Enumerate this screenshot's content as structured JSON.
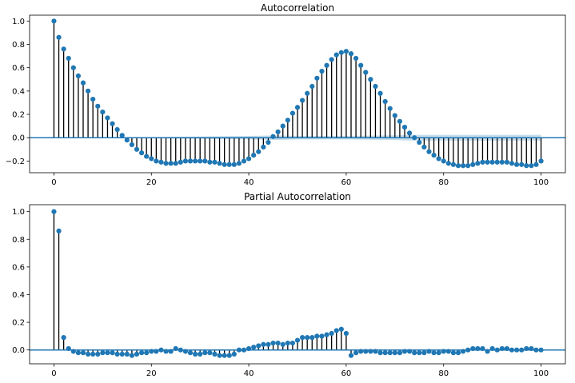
{
  "chart_data": [
    {
      "type": "stem",
      "title": "Autocorrelation",
      "xlabel": "",
      "ylabel": "",
      "xlim": [
        -5,
        105
      ],
      "ylim": [
        -0.3,
        1.05
      ],
      "xticks": [
        0,
        20,
        40,
        60,
        80,
        100
      ],
      "yticks": [
        -0.2,
        0.0,
        0.2,
        0.4,
        0.6,
        0.8,
        1.0
      ],
      "xtick_labels": [
        "0",
        "20",
        "40",
        "60",
        "80",
        "100"
      ],
      "ytick_labels": [
        "−0.2",
        "0.0",
        "0.2",
        "0.4",
        "0.6",
        "0.8",
        "1.0"
      ],
      "grid": false,
      "marker_color": "#1f77b4",
      "stem_color": "#000000",
      "baseline_color": "#1f77b4",
      "confidence_band_color": "#1f77b4",
      "confidence_band": {
        "x": [
          0,
          15,
          20,
          30,
          40,
          46,
          50,
          60,
          70,
          74,
          75,
          80,
          90,
          100
        ],
        "upper": [
          0.0,
          0.0,
          0.005,
          0.01,
          0.015,
          0.02,
          0.015,
          0.015,
          0.02,
          0.025,
          0.025,
          0.025,
          0.025,
          0.025
        ],
        "lower": [
          0.0,
          0.0,
          -0.005,
          -0.01,
          -0.015,
          -0.02,
          -0.015,
          -0.015,
          -0.02,
          -0.025,
          -0.025,
          -0.025,
          -0.025,
          -0.025
        ]
      },
      "x": [
        0,
        1,
        2,
        3,
        4,
        5,
        6,
        7,
        8,
        9,
        10,
        11,
        12,
        13,
        14,
        15,
        16,
        17,
        18,
        19,
        20,
        21,
        22,
        23,
        24,
        25,
        26,
        27,
        28,
        29,
        30,
        31,
        32,
        33,
        34,
        35,
        36,
        37,
        38,
        39,
        40,
        41,
        42,
        43,
        44,
        45,
        46,
        47,
        48,
        49,
        50,
        51,
        52,
        53,
        54,
        55,
        56,
        57,
        58,
        59,
        60,
        61,
        62,
        63,
        64,
        65,
        66,
        67,
        68,
        69,
        70,
        71,
        72,
        73,
        74,
        75,
        76,
        77,
        78,
        79,
        80,
        81,
        82,
        83,
        84,
        85,
        86,
        87,
        88,
        89,
        90,
        91,
        92,
        93,
        94,
        95,
        96,
        97,
        98,
        99,
        100
      ],
      "values": [
        1.0,
        0.86,
        0.76,
        0.68,
        0.6,
        0.53,
        0.47,
        0.4,
        0.33,
        0.27,
        0.22,
        0.17,
        0.12,
        0.07,
        0.02,
        -0.02,
        -0.06,
        -0.1,
        -0.13,
        -0.16,
        -0.18,
        -0.2,
        -0.21,
        -0.22,
        -0.22,
        -0.22,
        -0.21,
        -0.2,
        -0.2,
        -0.2,
        -0.2,
        -0.2,
        -0.21,
        -0.21,
        -0.22,
        -0.23,
        -0.23,
        -0.23,
        -0.22,
        -0.2,
        -0.18,
        -0.15,
        -0.12,
        -0.08,
        -0.04,
        0.01,
        0.05,
        0.1,
        0.15,
        0.21,
        0.26,
        0.32,
        0.38,
        0.44,
        0.51,
        0.57,
        0.62,
        0.67,
        0.71,
        0.73,
        0.74,
        0.72,
        0.68,
        0.62,
        0.56,
        0.5,
        0.44,
        0.38,
        0.31,
        0.25,
        0.19,
        0.14,
        0.09,
        0.04,
        0.0,
        -0.04,
        -0.08,
        -0.12,
        -0.15,
        -0.18,
        -0.2,
        -0.22,
        -0.23,
        -0.24,
        -0.24,
        -0.24,
        -0.23,
        -0.22,
        -0.21,
        -0.21,
        -0.21,
        -0.21,
        -0.21,
        -0.21,
        -0.22,
        -0.23,
        -0.23,
        -0.24,
        -0.24,
        -0.23,
        -0.2
      ]
    },
    {
      "type": "stem",
      "title": "Partial Autocorrelation",
      "xlabel": "",
      "ylabel": "",
      "xlim": [
        -5,
        105
      ],
      "ylim": [
        -0.1,
        1.05
      ],
      "xticks": [
        0,
        20,
        40,
        60,
        80,
        100
      ],
      "yticks": [
        0.0,
        0.2,
        0.4,
        0.6,
        0.8,
        1.0
      ],
      "xtick_labels": [
        "0",
        "20",
        "40",
        "60",
        "80",
        "100"
      ],
      "ytick_labels": [
        "0.0",
        "0.2",
        "0.4",
        "0.6",
        "0.8",
        "1.0"
      ],
      "grid": false,
      "marker_color": "#1f77b4",
      "stem_color": "#000000",
      "baseline_color": "#1f77b4",
      "x": [
        0,
        1,
        2,
        3,
        4,
        5,
        6,
        7,
        8,
        9,
        10,
        11,
        12,
        13,
        14,
        15,
        16,
        17,
        18,
        19,
        20,
        21,
        22,
        23,
        24,
        25,
        26,
        27,
        28,
        29,
        30,
        31,
        32,
        33,
        34,
        35,
        36,
        37,
        38,
        39,
        40,
        41,
        42,
        43,
        44,
        45,
        46,
        47,
        48,
        49,
        50,
        51,
        52,
        53,
        54,
        55,
        56,
        57,
        58,
        59,
        60,
        61,
        62,
        63,
        64,
        65,
        66,
        67,
        68,
        69,
        70,
        71,
        72,
        73,
        74,
        75,
        76,
        77,
        78,
        79,
        80,
        81,
        82,
        83,
        84,
        85,
        86,
        87,
        88,
        89,
        90,
        91,
        92,
        93,
        94,
        95,
        96,
        97,
        98,
        99,
        100
      ],
      "values": [
        1.0,
        0.86,
        0.09,
        0.01,
        -0.01,
        -0.02,
        -0.02,
        -0.03,
        -0.03,
        -0.03,
        -0.02,
        -0.02,
        -0.02,
        -0.03,
        -0.03,
        -0.03,
        -0.04,
        -0.03,
        -0.02,
        -0.02,
        -0.01,
        -0.01,
        0.0,
        -0.01,
        -0.01,
        0.01,
        0.0,
        -0.01,
        -0.02,
        -0.03,
        -0.03,
        -0.02,
        -0.02,
        -0.03,
        -0.04,
        -0.04,
        -0.04,
        -0.03,
        0.0,
        0.0,
        0.01,
        0.02,
        0.03,
        0.04,
        0.04,
        0.05,
        0.05,
        0.04,
        0.05,
        0.05,
        0.07,
        0.09,
        0.09,
        0.09,
        0.1,
        0.1,
        0.11,
        0.12,
        0.14,
        0.15,
        0.12,
        -0.04,
        -0.02,
        -0.01,
        -0.01,
        -0.01,
        -0.01,
        -0.02,
        -0.02,
        -0.02,
        -0.02,
        -0.02,
        -0.01,
        -0.01,
        -0.02,
        -0.02,
        -0.02,
        -0.01,
        -0.02,
        -0.02,
        -0.01,
        -0.01,
        -0.02,
        -0.02,
        -0.01,
        0.0,
        0.01,
        0.01,
        0.01,
        -0.01,
        0.01,
        0.0,
        0.01,
        0.01,
        0.0,
        0.0,
        0.0,
        0.01,
        0.01,
        0.0,
        0.0
      ]
    }
  ]
}
